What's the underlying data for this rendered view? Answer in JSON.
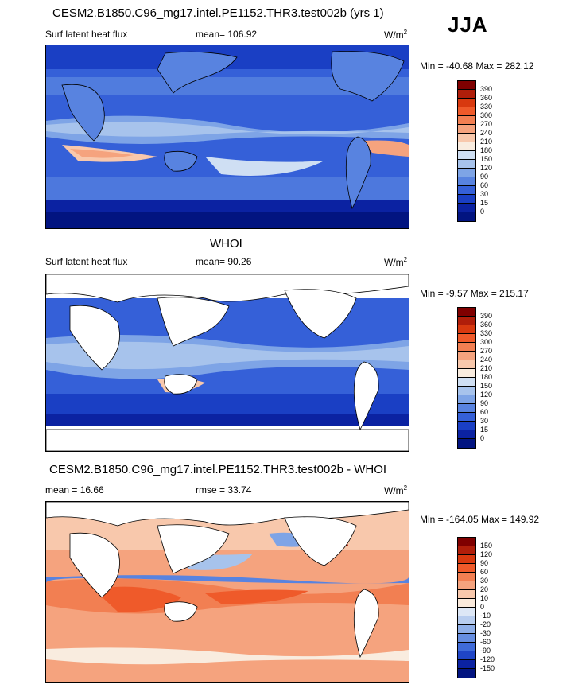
{
  "season": "JJA",
  "panels": [
    {
      "title": "CESM2.B1850.C96_mg17.intel.PE1152.THR3.test002b (yrs 1)",
      "left_label": "Surf latent heat flux",
      "mid_label": "mean= 106.92",
      "units": "W/m",
      "units_exp": "2",
      "minmax": "Min = -40.68 Max = 282.12",
      "colorbar": {
        "colors": [
          "#7f0000",
          "#b01e0a",
          "#d8390f",
          "#ef5a2a",
          "#f27f52",
          "#f5a37e",
          "#f8c8ac",
          "#f9ecdf",
          "#cfdff3",
          "#a7c3ec",
          "#7ea4e6",
          "#5883e0",
          "#3560d8",
          "#1a3fc4",
          "#0b22a2",
          "#021480"
        ],
        "labels": [
          "390",
          "360",
          "330",
          "300",
          "270",
          "240",
          "210",
          "180",
          "150",
          "120",
          "90",
          "60",
          "30",
          "15",
          "0"
        ]
      }
    },
    {
      "title": "WHOI",
      "left_label": "Surf latent heat flux",
      "mid_label": "mean=  90.26",
      "units": "W/m",
      "units_exp": "2",
      "minmax": "Min =  -9.57 Max = 215.17",
      "colorbar": {
        "colors": [
          "#7f0000",
          "#b01e0a",
          "#d8390f",
          "#ef5a2a",
          "#f27f52",
          "#f5a37e",
          "#f8c8ac",
          "#f9ecdf",
          "#cfdff3",
          "#a7c3ec",
          "#7ea4e6",
          "#5883e0",
          "#3560d8",
          "#1a3fc4",
          "#0b22a2",
          "#021480"
        ],
        "labels": [
          "390",
          "360",
          "330",
          "300",
          "270",
          "240",
          "210",
          "180",
          "150",
          "120",
          "90",
          "60",
          "30",
          "15",
          "0"
        ]
      }
    },
    {
      "title": "CESM2.B1850.C96_mg17.intel.PE1152.THR3.test002b - WHOI",
      "left_label": "mean =  16.66",
      "mid_label": "rmse =  33.74",
      "units": "W/m",
      "units_exp": "2",
      "minmax": "Min = -164.05 Max = 149.92",
      "colorbar": {
        "colors": [
          "#7f0000",
          "#b01e0a",
          "#d8390f",
          "#ef5a2a",
          "#f27f52",
          "#f5a37e",
          "#f8c8ac",
          "#faeadc",
          "#dde7f6",
          "#b8cdef",
          "#8fafe8",
          "#668ee1",
          "#3f6bd9",
          "#1f45c6",
          "#0b22a2",
          "#021480"
        ],
        "labels": [
          "150",
          "120",
          "90",
          "60",
          "30",
          "20",
          "10",
          "0",
          "-10",
          "-20",
          "-30",
          "-60",
          "-90",
          "-120",
          "-150"
        ]
      }
    }
  ]
}
